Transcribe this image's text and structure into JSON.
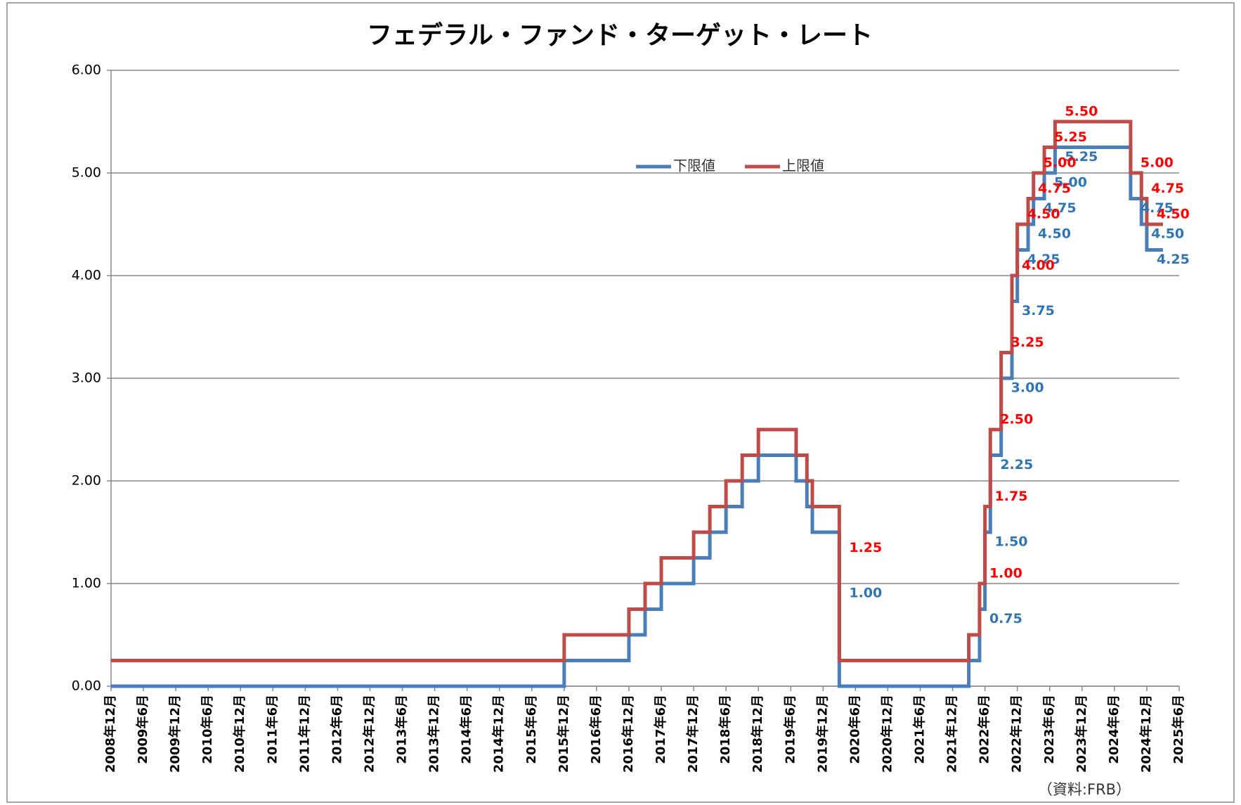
{
  "chart_data": {
    "type": "line",
    "step": "post",
    "title": "フェデラル・ファンド・ターゲット・レート",
    "source": "（資料:FRB）",
    "x": [
      "2008-12",
      "2015-12",
      "2016-12",
      "2017-03",
      "2017-06",
      "2017-12",
      "2018-03",
      "2018-06",
      "2018-09",
      "2018-12",
      "2019-07",
      "2019-09",
      "2019-10",
      "2020-03",
      "2020-03",
      "2022-03",
      "2022-05",
      "2022-06",
      "2022-07",
      "2022-09",
      "2022-11",
      "2022-12",
      "2023-02",
      "2023-03",
      "2023-05",
      "2023-07",
      "2024-09",
      "2024-11",
      "2024-12",
      "2025-03"
    ],
    "series": [
      {
        "name": "下限値",
        "color": "#4a7ebb",
        "label_color": "#2e75b6",
        "values": [
          0,
          0.25,
          0.5,
          0.75,
          1,
          1.25,
          1.5,
          1.75,
          2,
          2.25,
          2,
          1.75,
          1.5,
          1,
          0,
          0.25,
          0.75,
          1.5,
          2.25,
          3,
          3.75,
          4.25,
          4.5,
          4.75,
          5,
          5.25,
          4.75,
          4.5,
          4.25,
          4.25
        ],
        "value_labels": [
          null,
          null,
          null,
          null,
          null,
          null,
          null,
          null,
          null,
          null,
          null,
          null,
          null,
          "1.00",
          null,
          null,
          "0.75",
          "1.50",
          "2.25",
          "3.00",
          "3.75",
          "4.25",
          "4.50",
          "4.75",
          "5.00",
          "5.25",
          "4.75",
          "4.50",
          "4.25",
          null
        ]
      },
      {
        "name": "上限値",
        "color": "#be4b48",
        "label_color": "#ff0000",
        "values": [
          0.25,
          0.5,
          0.75,
          1,
          1.25,
          1.5,
          1.75,
          2,
          2.25,
          2.5,
          2.25,
          2,
          1.75,
          1.25,
          0.25,
          0.5,
          1,
          1.75,
          2.5,
          3.25,
          4,
          4.5,
          4.75,
          5,
          5.25,
          5.5,
          5,
          4.75,
          4.5,
          4.5
        ],
        "value_labels": [
          null,
          null,
          null,
          null,
          null,
          null,
          null,
          null,
          null,
          null,
          null,
          null,
          null,
          "1.25",
          null,
          null,
          "1.00",
          "1.75",
          "2.50",
          "3.25",
          "4.00",
          "4.50",
          "4.75",
          "5.00",
          "5.25",
          "5.50",
          "5.00",
          "4.75",
          "4.50",
          null
        ]
      }
    ],
    "xlim": [
      "2008-12",
      "2025-06"
    ],
    "xticks": [
      {
        "value": "2008-12",
        "label": "2008年12月"
      },
      {
        "value": "2009-06",
        "label": "2009年6月"
      },
      {
        "value": "2009-12",
        "label": "2009年12月"
      },
      {
        "value": "2010-06",
        "label": "2010年6月"
      },
      {
        "value": "2010-12",
        "label": "2010年12月"
      },
      {
        "value": "2011-06",
        "label": "2011年6月"
      },
      {
        "value": "2011-12",
        "label": "2011年12月"
      },
      {
        "value": "2012-06",
        "label": "2012年6月"
      },
      {
        "value": "2012-12",
        "label": "2012年12月"
      },
      {
        "value": "2013-06",
        "label": "2013年6月"
      },
      {
        "value": "2013-12",
        "label": "2013年12月"
      },
      {
        "value": "2014-06",
        "label": "2014年6月"
      },
      {
        "value": "2014-12",
        "label": "2014年12月"
      },
      {
        "value": "2015-06",
        "label": "2015年6月"
      },
      {
        "value": "2015-12",
        "label": "2015年12月"
      },
      {
        "value": "2016-06",
        "label": "2016年6月"
      },
      {
        "value": "2016-12",
        "label": "2016年12月"
      },
      {
        "value": "2017-06",
        "label": "2017年6月"
      },
      {
        "value": "2017-12",
        "label": "2017年12月"
      },
      {
        "value": "2018-06",
        "label": "2018年6月"
      },
      {
        "value": "2018-12",
        "label": "2018年12月"
      },
      {
        "value": "2019-06",
        "label": "2019年6月"
      },
      {
        "value": "2019-12",
        "label": "2019年12月"
      },
      {
        "value": "2020-06",
        "label": "2020年6月"
      },
      {
        "value": "2020-12",
        "label": "2020年12月"
      },
      {
        "value": "2021-06",
        "label": "2021年6月"
      },
      {
        "value": "2021-12",
        "label": "2021年12月"
      },
      {
        "value": "2022-06",
        "label": "2022年6月"
      },
      {
        "value": "2022-12",
        "label": "2022年12月"
      },
      {
        "value": "2023-06",
        "label": "2023年6月"
      },
      {
        "value": "2023-12",
        "label": "2023年12月"
      },
      {
        "value": "2024-06",
        "label": "2024年6月"
      },
      {
        "value": "2024-12",
        "label": "2024年12月"
      },
      {
        "value": "2025-06",
        "label": "2025年6月"
      }
    ],
    "ylim": [
      0,
      6
    ],
    "yticks": [
      {
        "value": 0,
        "label": "0.00"
      },
      {
        "value": 1,
        "label": "1.00"
      },
      {
        "value": 2,
        "label": "2.00"
      },
      {
        "value": 3,
        "label": "3.00"
      },
      {
        "value": 4,
        "label": "4.00"
      },
      {
        "value": 5,
        "label": "5.00"
      },
      {
        "value": 6,
        "label": "6.00"
      }
    ],
    "grid": true,
    "legend": "top"
  }
}
